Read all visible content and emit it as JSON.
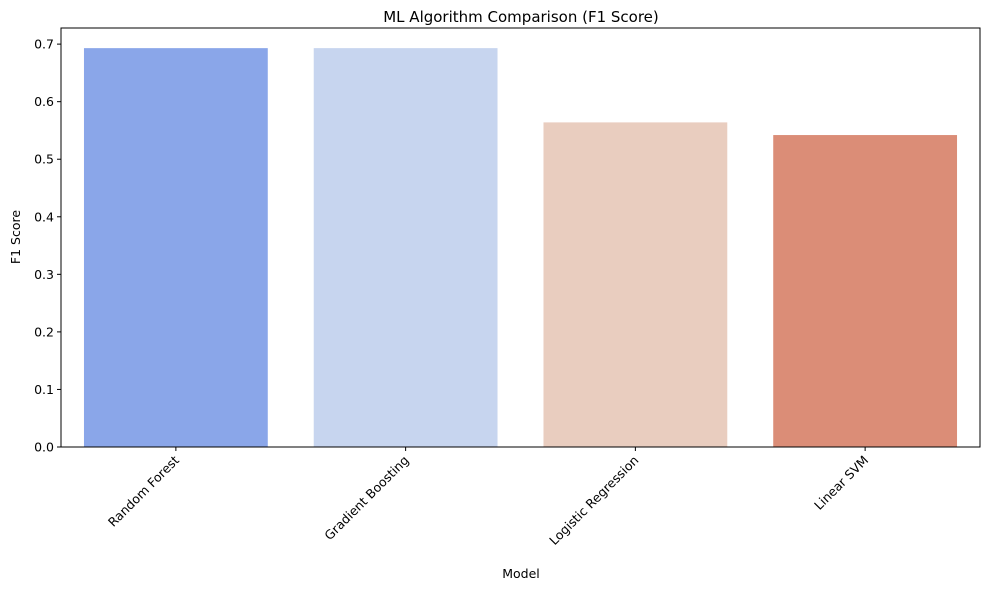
{
  "chart_data": {
    "type": "bar",
    "title": "ML Algorithm Comparison (F1 Score)",
    "xlabel": "Model",
    "ylabel": "F1 Score",
    "categories": [
      "Random Forest",
      "Gradient Boosting",
      "Logistic Regression",
      "Linear SVM"
    ],
    "values": [
      0.693,
      0.693,
      0.564,
      0.542
    ],
    "colors": [
      "#8aa6e9",
      "#c7d5ef",
      "#e9cdbf",
      "#db8d77"
    ],
    "ylim": [
      0,
      0.728
    ],
    "yticks": [
      0.0,
      0.1,
      0.2,
      0.3,
      0.4,
      0.5,
      0.6,
      0.7
    ],
    "ytick_labels": [
      "0.0",
      "0.1",
      "0.2",
      "0.3",
      "0.4",
      "0.5",
      "0.6",
      "0.7"
    ],
    "xtick_rotation": 45,
    "grid": false,
    "legend": "none"
  }
}
